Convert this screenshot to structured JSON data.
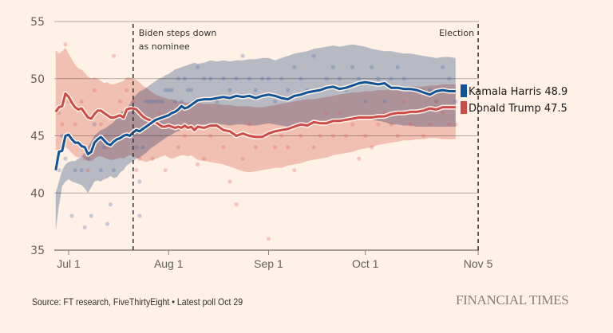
{
  "chart_data": {
    "type": "line",
    "title": "",
    "xlabel": "",
    "ylabel": "",
    "ylim": [
      35,
      55
    ],
    "yticks": [
      "35",
      "40",
      "45",
      "50",
      "55"
    ],
    "xticks": [
      {
        "label": "Jul 1",
        "day": 0
      },
      {
        "label": "Aug 1",
        "day": 31
      },
      {
        "label": "Sep 1",
        "day": 62
      },
      {
        "label": "Oct 1",
        "day": 92
      },
      {
        "label": "Nov 5",
        "day": 127
      }
    ],
    "grid": true,
    "annotations": [
      {
        "label_lines": [
          "Biden steps down",
          "as nominee"
        ],
        "day": 20
      },
      {
        "label_lines": [
          "Election"
        ],
        "day": 127
      }
    ],
    "series": [
      {
        "name": "Kamala Harris",
        "final_value": "48.9",
        "color": "#0f5499",
        "band_color": "#8aa0c2",
        "days": [
          -4,
          -3,
          -2,
          -1,
          0,
          1,
          2,
          3,
          4,
          5,
          6,
          7,
          8,
          9,
          10,
          11,
          12,
          13,
          14,
          15,
          16,
          17,
          18,
          19,
          20,
          21,
          22,
          23,
          24,
          25,
          26,
          27,
          28,
          29,
          30,
          31,
          32,
          33,
          34,
          35,
          36,
          37,
          38,
          39,
          40,
          42,
          44,
          46,
          48,
          50,
          52,
          54,
          56,
          58,
          60,
          62,
          64,
          66,
          68,
          70,
          72,
          74,
          76,
          78,
          80,
          82,
          84,
          86,
          88,
          90,
          92,
          94,
          96,
          98,
          100,
          102,
          104,
          106,
          108,
          110,
          112,
          114,
          116,
          118,
          120
        ],
        "values": [
          42.0,
          43.6,
          43.7,
          45.0,
          45.1,
          44.7,
          44.4,
          44.4,
          44.1,
          44.0,
          43.4,
          43.6,
          44.4,
          44.7,
          44.9,
          44.6,
          44.3,
          44.2,
          44.5,
          44.7,
          44.8,
          45.0,
          45.1,
          45.0,
          45.3,
          45.5,
          45.4,
          45.6,
          45.8,
          46.0,
          46.2,
          46.4,
          46.5,
          46.6,
          46.7,
          46.8,
          47.0,
          47.1,
          47.3,
          47.6,
          47.4,
          47.5,
          47.7,
          47.9,
          48.1,
          48.2,
          48.2,
          48.3,
          48.4,
          48.3,
          48.5,
          48.4,
          48.5,
          48.3,
          48.5,
          48.6,
          48.5,
          48.3,
          48.2,
          48.5,
          48.6,
          48.8,
          48.9,
          49.0,
          49.2,
          49.3,
          49.1,
          49.2,
          49.4,
          49.6,
          49.7,
          49.6,
          49.5,
          49.6,
          49.2,
          49.2,
          49.1,
          49.1,
          49.0,
          48.8,
          48.6,
          48.9,
          49.0,
          48.9,
          48.9
        ],
        "band_upper": [
          40.0,
          41.0,
          42.0,
          42.5,
          42.7,
          42.8,
          42.8,
          43.0,
          43.2,
          43.5,
          44.0,
          44.5,
          45.0,
          45.3,
          45.5,
          45.6,
          45.8,
          46.0,
          46.2,
          46.6,
          47.0,
          47.2,
          47.4,
          47.8,
          48.3,
          48.6,
          48.9,
          49.0,
          49.2,
          49.4,
          49.6,
          49.8,
          50.0,
          50.1,
          50.3,
          50.4,
          50.6,
          50.8,
          50.9,
          51.0,
          51.1,
          51.2,
          51.3,
          51.4,
          51.3,
          51.4,
          51.6,
          51.5,
          51.6,
          51.5,
          51.6,
          51.6,
          51.7,
          51.7,
          51.8,
          51.8,
          51.6,
          51.8,
          52.0,
          52.2,
          52.3,
          52.4,
          52.6,
          52.7,
          52.8,
          52.9,
          52.8,
          52.9,
          53.0,
          52.9,
          52.8,
          52.6,
          52.5,
          52.4,
          52.4,
          52.3,
          52.2,
          52.2,
          52.1,
          52.0,
          51.9,
          51.8,
          51.9,
          51.9,
          51.8
        ],
        "band_lower": [
          36.7,
          38.9,
          40.6,
          41.0,
          41.2,
          41.0,
          40.9,
          40.8,
          40.7,
          40.4,
          40.0,
          40.5,
          41.0,
          41.1,
          41.0,
          41.2,
          41.3,
          41.5,
          41.3,
          41.4,
          41.8,
          42.0,
          42.4,
          42.6,
          42.8,
          43.0,
          43.1,
          43.3,
          43.5,
          43.8,
          44.0,
          44.2,
          44.4,
          44.6,
          44.8,
          45.0,
          45.1,
          45.3,
          45.4,
          45.5,
          45.6,
          45.7,
          45.8,
          45.8,
          45.9,
          46.0,
          45.9,
          46.0,
          46.0,
          45.9,
          46.0,
          46.0,
          45.9,
          45.9,
          46.0,
          46.1,
          46.0,
          45.9,
          45.8,
          45.9,
          46.0,
          46.0,
          46.1,
          46.2,
          46.2,
          46.3,
          46.4,
          46.4,
          46.5,
          46.5,
          46.5,
          46.4,
          46.3,
          46.2,
          46.0,
          46.0,
          45.9,
          45.9,
          45.8,
          45.8,
          45.8,
          45.8,
          45.8,
          45.8,
          45.8
        ]
      },
      {
        "name": "Donald Trump",
        "final_value": "47.5",
        "color": "#cc4b48",
        "band_color": "#e8a19b",
        "days": [
          -4,
          -3,
          -2,
          -1,
          0,
          1,
          2,
          3,
          4,
          5,
          6,
          7,
          8,
          9,
          10,
          11,
          12,
          13,
          14,
          15,
          16,
          17,
          18,
          19,
          20,
          21,
          22,
          23,
          24,
          25,
          26,
          27,
          28,
          29,
          30,
          31,
          32,
          33,
          34,
          35,
          36,
          37,
          38,
          39,
          40,
          42,
          44,
          46,
          48,
          50,
          52,
          54,
          56,
          58,
          60,
          62,
          64,
          66,
          68,
          70,
          72,
          74,
          76,
          78,
          80,
          82,
          84,
          86,
          88,
          90,
          92,
          94,
          96,
          98,
          100,
          102,
          104,
          106,
          108,
          110,
          112,
          114,
          116,
          118,
          120
        ],
        "values": [
          47.1,
          47.5,
          47.6,
          48.7,
          48.4,
          47.9,
          47.5,
          47.3,
          47.4,
          47.0,
          46.6,
          46.5,
          46.9,
          47.2,
          47.2,
          47.0,
          46.8,
          46.6,
          46.6,
          46.7,
          46.8,
          46.6,
          47.3,
          47.4,
          47.4,
          47.3,
          47.0,
          46.7,
          46.5,
          46.4,
          46.2,
          46.2,
          46.0,
          45.8,
          45.8,
          45.9,
          45.8,
          45.7,
          45.8,
          45.7,
          45.9,
          45.7,
          45.8,
          45.5,
          45.8,
          45.7,
          45.9,
          45.9,
          45.5,
          45.4,
          45.0,
          45.2,
          45.0,
          44.9,
          44.9,
          45.2,
          45.4,
          45.5,
          45.6,
          45.8,
          46.0,
          45.9,
          46.2,
          46.1,
          46.1,
          46.3,
          46.3,
          46.4,
          46.5,
          46.6,
          46.6,
          46.6,
          46.7,
          46.7,
          46.9,
          47.0,
          47.0,
          47.1,
          47.1,
          47.2,
          47.4,
          47.3,
          47.5,
          47.5,
          47.5
        ],
        "band_upper": [
          52.5,
          52.2,
          52.4,
          52.7,
          52.2,
          51.7,
          51.2,
          50.9,
          50.8,
          50.5,
          50.2,
          50.0,
          50.1,
          50.0,
          49.8,
          49.6,
          49.7,
          49.5,
          49.5,
          49.6,
          49.7,
          49.8,
          50.1,
          50.1,
          50.0,
          49.9,
          49.7,
          49.4,
          49.2,
          49.0,
          48.8,
          48.6,
          48.5,
          48.4,
          48.3,
          48.2,
          48.2,
          48.1,
          48.0,
          48.0,
          47.9,
          47.9,
          47.9,
          47.8,
          47.9,
          47.8,
          47.8,
          47.8,
          47.7,
          47.7,
          47.6,
          47.6,
          47.6,
          47.5,
          47.5,
          47.6,
          47.7,
          47.8,
          47.9,
          48.0,
          48.1,
          48.2,
          48.2,
          48.3,
          48.4,
          48.5,
          48.6,
          48.7,
          48.8,
          48.8,
          48.9,
          48.9,
          49.0,
          49.0,
          49.1,
          49.2,
          49.2,
          49.3,
          49.3,
          49.3,
          49.4,
          49.4,
          49.5,
          49.5,
          49.5
        ],
        "band_lower": [
          43.8,
          43.5,
          43.8,
          44.0,
          43.8,
          43.5,
          43.2,
          43.1,
          43.2,
          43.0,
          42.8,
          42.8,
          43.0,
          43.2,
          43.2,
          43.1,
          43.0,
          42.9,
          42.9,
          43.0,
          43.1,
          43.0,
          43.2,
          43.3,
          43.2,
          43.1,
          42.9,
          42.8,
          42.7,
          42.8,
          42.9,
          43.0,
          43.1,
          43.2,
          43.3,
          43.1,
          43.0,
          43.1,
          43.2,
          43.3,
          43.3,
          43.2,
          43.3,
          43.1,
          42.9,
          42.8,
          42.7,
          42.6,
          42.5,
          42.3,
          42.1,
          41.9,
          41.8,
          41.9,
          42.0,
          42.1,
          42.2,
          42.2,
          42.4,
          42.5,
          42.6,
          42.8,
          42.9,
          43.0,
          43.1,
          43.3,
          43.4,
          43.5,
          43.6,
          43.8,
          43.9,
          44.0,
          44.2,
          44.3,
          44.4,
          44.5,
          44.6,
          44.6,
          44.7,
          44.7,
          44.8,
          44.8,
          44.7,
          44.7,
          44.7
        ]
      }
    ],
    "poll_dots": {
      "harris": [
        [
          -3,
          42
        ],
        [
          -2,
          45
        ],
        [
          -1,
          43
        ],
        [
          1,
          38
        ],
        [
          2,
          42
        ],
        [
          4,
          42
        ],
        [
          5,
          37
        ],
        [
          6,
          43
        ],
        [
          7,
          38
        ],
        [
          8,
          46
        ],
        [
          10,
          42
        ],
        [
          11,
          44
        ],
        [
          12,
          37.3
        ],
        [
          13,
          39
        ],
        [
          14,
          42
        ],
        [
          16,
          45
        ],
        [
          18,
          47
        ],
        [
          20,
          47
        ],
        [
          21,
          44
        ],
        [
          22,
          41
        ],
        [
          22,
          38
        ],
        [
          23,
          44
        ],
        [
          24,
          48
        ],
        [
          25,
          48
        ],
        [
          26,
          48
        ],
        [
          27,
          48
        ],
        [
          28,
          48
        ],
        [
          29,
          48
        ],
        [
          30,
          49
        ],
        [
          31,
          49
        ],
        [
          32,
          49
        ],
        [
          33,
          48
        ],
        [
          34,
          50
        ],
        [
          35,
          48
        ],
        [
          36,
          50
        ],
        [
          37,
          49
        ],
        [
          38,
          49
        ],
        [
          39,
          48
        ],
        [
          40,
          51
        ],
        [
          42,
          50
        ],
        [
          44,
          50
        ],
        [
          46,
          48
        ],
        [
          48,
          50
        ],
        [
          50,
          49
        ],
        [
          52,
          50
        ],
        [
          54,
          52
        ],
        [
          56,
          50
        ],
        [
          58,
          49
        ],
        [
          60,
          50
        ],
        [
          62,
          50
        ],
        [
          64,
          48
        ],
        [
          66,
          50
        ],
        [
          68,
          49
        ],
        [
          70,
          51
        ],
        [
          72,
          50
        ],
        [
          74,
          49
        ],
        [
          76,
          52
        ],
        [
          78,
          49
        ],
        [
          80,
          50
        ],
        [
          82,
          51
        ],
        [
          84,
          50
        ],
        [
          86,
          49
        ],
        [
          88,
          51
        ],
        [
          90,
          50
        ],
        [
          92,
          48
        ],
        [
          94,
          51
        ],
        [
          96,
          50
        ],
        [
          98,
          48
        ],
        [
          100,
          50
        ],
        [
          102,
          51
        ],
        [
          104,
          50
        ],
        [
          106,
          49
        ],
        [
          108,
          47
        ],
        [
          110,
          49
        ],
        [
          112,
          49
        ],
        [
          114,
          48
        ],
        [
          116,
          51
        ],
        [
          118,
          50
        ],
        [
          120,
          48
        ]
      ],
      "trump": [
        [
          -3,
          47
        ],
        [
          -2,
          46
        ],
        [
          -1,
          53
        ],
        [
          0,
          48
        ],
        [
          2,
          46
        ],
        [
          4,
          48
        ],
        [
          5,
          43
        ],
        [
          6,
          42
        ],
        [
          8,
          49
        ],
        [
          10,
          46
        ],
        [
          12,
          44
        ],
        [
          14,
          52
        ],
        [
          16,
          48
        ],
        [
          18,
          49
        ],
        [
          20,
          48
        ],
        [
          21,
          42
        ],
        [
          22,
          43
        ],
        [
          24,
          46
        ],
        [
          26,
          43
        ],
        [
          28,
          47
        ],
        [
          30,
          42
        ],
        [
          32,
          46
        ],
        [
          34,
          44
        ],
        [
          36,
          45
        ],
        [
          38,
          46
        ],
        [
          40,
          42.5
        ],
        [
          42,
          43
        ],
        [
          44,
          45
        ],
        [
          46,
          46
        ],
        [
          48,
          44
        ],
        [
          50,
          41
        ],
        [
          52,
          39
        ],
        [
          54,
          43
        ],
        [
          56,
          46
        ],
        [
          58,
          44
        ],
        [
          60,
          45
        ],
        [
          62,
          36
        ],
        [
          64,
          44
        ],
        [
          66,
          45
        ],
        [
          68,
          44
        ],
        [
          70,
          42
        ],
        [
          72,
          45
        ],
        [
          74,
          46
        ],
        [
          76,
          44
        ],
        [
          78,
          45
        ],
        [
          80,
          47
        ],
        [
          82,
          45
        ],
        [
          84,
          47
        ],
        [
          86,
          45
        ],
        [
          88,
          46
        ],
        [
          90,
          43
        ],
        [
          92,
          45
        ],
        [
          94,
          44
        ],
        [
          96,
          46
        ],
        [
          98,
          47
        ],
        [
          100,
          46
        ],
        [
          102,
          45
        ],
        [
          104,
          48
        ],
        [
          106,
          46
        ],
        [
          108,
          47
        ],
        [
          110,
          45
        ],
        [
          112,
          46
        ],
        [
          114,
          48
        ],
        [
          116,
          47
        ],
        [
          118,
          46
        ],
        [
          120,
          46
        ]
      ]
    }
  },
  "legend": [
    {
      "label": "Kamala Harris 48.9",
      "color": "#0f5499"
    },
    {
      "label": "Donald Trump 47.5",
      "color": "#cc4b48"
    }
  ],
  "footer": {
    "source": "Source: FT research, FiveThirtyEight • Latest poll Oct 29",
    "brand": "FINANCIAL TIMES"
  }
}
